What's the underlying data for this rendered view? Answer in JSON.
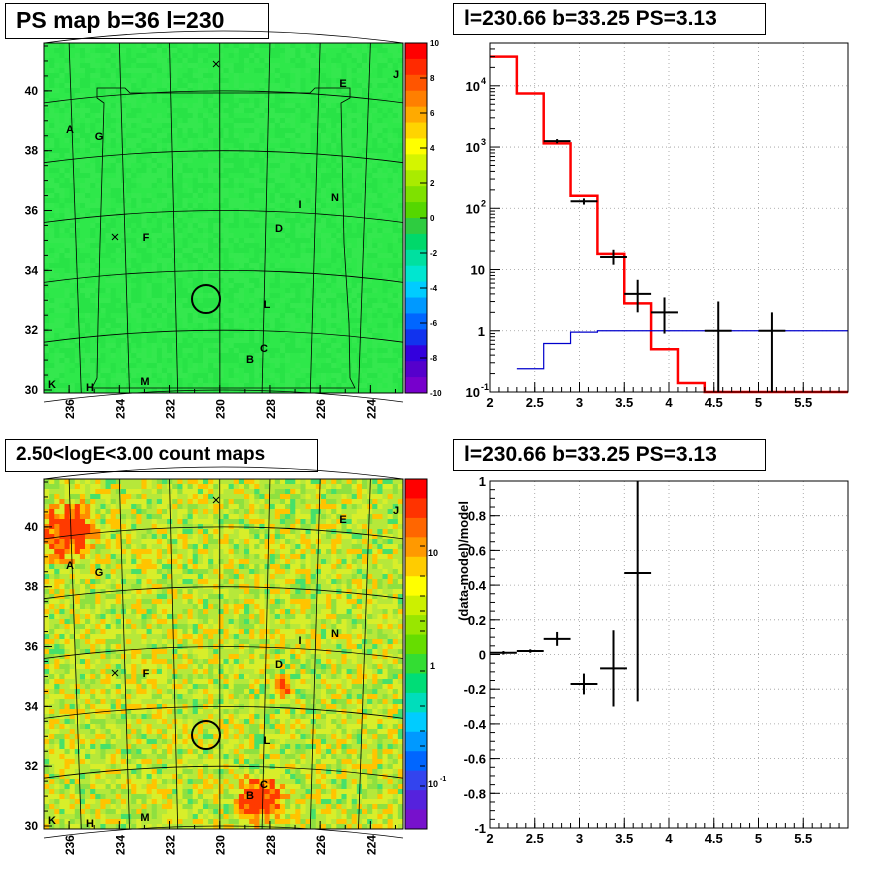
{
  "panels": {
    "map_top": {
      "title": "PS map b=36 l=230",
      "colorbar_ticks": [
        10,
        8,
        6,
        4,
        2,
        0,
        -2,
        -4,
        -6,
        -8,
        -10
      ],
      "colorscale": "linear",
      "base_color": "#2ee84a"
    },
    "spectrum": {
      "title": "l=230.66 b=33.25 PS=3.13"
    },
    "map_bottom": {
      "title": "2.50<logE<3.00 count maps",
      "colorbar_labels": [
        "10",
        "1",
        "10"
      ],
      "colorbar_exponent": "-1",
      "colorscale": "log",
      "base_color": "#b6e83a"
    },
    "residual": {
      "title": "l=230.66 b=33.25 PS=3.13"
    }
  },
  "map_axes": {
    "x_ticks": [
      236,
      234,
      232,
      230,
      228,
      226,
      224
    ],
    "y_ticks": [
      30,
      32,
      34,
      36,
      38,
      40
    ],
    "xlim": [
      237,
      222.7
    ],
    "ylim": [
      29.9,
      41.6
    ]
  },
  "map_labels": {
    "letters": [
      "A",
      "G",
      "E",
      "J",
      "I",
      "N",
      "D",
      "F",
      "L",
      "C",
      "B",
      "K",
      "H",
      "M"
    ]
  },
  "chart_data": [
    {
      "type": "heatmap",
      "title": "PS map b=36 l=230",
      "xlabel": "",
      "ylabel": "",
      "x_ticks": [
        236,
        234,
        232,
        230,
        228,
        226,
        224
      ],
      "y_ticks": [
        30,
        32,
        34,
        36,
        38,
        40
      ],
      "z_range": [
        -10,
        10
      ],
      "circle_marker": {
        "l": 230.66,
        "b": 33.25
      }
    },
    {
      "type": "step",
      "title": "l=230.66 b=33.25 PS=3.13",
      "xlabel": "",
      "ylabel": "",
      "xlim": [
        2,
        6
      ],
      "ylim": [
        0.1,
        50000
      ],
      "yscale": "log",
      "x_ticks": [
        "2",
        "2.5",
        "3",
        "3.5",
        "4",
        "4.5",
        "5",
        "5.5"
      ],
      "series": [
        {
          "color": "#ff0000",
          "bins": [
            [
              2.0,
              2.3,
              30000
            ],
            [
              2.3,
              2.6,
              7500
            ],
            [
              2.6,
              2.9,
              1150
            ],
            [
              2.9,
              3.2,
              160
            ],
            [
              3.2,
              3.5,
              18
            ],
            [
              3.5,
              3.8,
              2.8
            ],
            [
              3.8,
              4.1,
              0.5
            ],
            [
              4.1,
              4.4,
              0.14
            ],
            [
              4.4,
              6.0,
              0.1
            ]
          ]
        },
        {
          "color": "#0000cc",
          "bins": [
            [
              2.3,
              2.6,
              0.24
            ],
            [
              2.6,
              2.9,
              0.62
            ],
            [
              2.9,
              3.2,
              0.95
            ],
            [
              3.2,
              6.0,
              1.0
            ]
          ]
        },
        {
          "color": "#000000",
          "points": [
            {
              "x": 2.75,
              "y": 1250,
              "xerr": 0.15,
              "ylo": 1150,
              "yhi": 1350
            },
            {
              "x": 3.05,
              "y": 130,
              "xerr": 0.15,
              "ylo": 115,
              "yhi": 145
            },
            {
              "x": 3.38,
              "y": 16,
              "xerr": 0.15,
              "ylo": 12,
              "yhi": 21
            },
            {
              "x": 3.65,
              "y": 4,
              "xerr": 0.15,
              "ylo": 2,
              "yhi": 6.8
            },
            {
              "x": 3.95,
              "y": 2,
              "xerr": 0.15,
              "ylo": 0.9,
              "yhi": 3.5
            },
            {
              "x": 4.55,
              "y": 1,
              "xerr": 0.15,
              "ylo": 0.1,
              "yhi": 3
            },
            {
              "x": 5.15,
              "y": 1,
              "xerr": 0.15,
              "ylo": 0.1,
              "yhi": 2
            }
          ]
        }
      ]
    },
    {
      "type": "heatmap",
      "title": "2.50<logE<3.00 count maps",
      "xlabel": "",
      "ylabel": "",
      "x_ticks": [
        236,
        234,
        232,
        230,
        228,
        226,
        224
      ],
      "y_ticks": [
        30,
        32,
        34,
        36,
        38,
        40
      ],
      "zscale": "log",
      "circle_marker": {
        "l": 230.66,
        "b": 33.25
      }
    },
    {
      "type": "scatter",
      "title": "l=230.66 b=33.25 PS=3.13",
      "xlabel": "",
      "ylabel": "(data-model)/model",
      "xlim": [
        2,
        6
      ],
      "ylim": [
        -1,
        1
      ],
      "x_ticks": [
        "2",
        "2.5",
        "3",
        "3.5",
        "4",
        "4.5",
        "5",
        "5.5"
      ],
      "y_ticks": [
        "1",
        "0.8",
        "0.6",
        "0.4",
        "0.2",
        "0",
        "-0.2",
        "-0.4",
        "-0.6",
        "-0.8",
        "-1"
      ],
      "points": [
        {
          "x": 2.15,
          "y": 0.01,
          "xerr": 0.15,
          "yerr": 0.01
        },
        {
          "x": 2.45,
          "y": 0.02,
          "xerr": 0.15,
          "yerr": 0.01
        },
        {
          "x": 2.75,
          "y": 0.09,
          "xerr": 0.15,
          "yerr": 0.04
        },
        {
          "x": 3.05,
          "y": -0.17,
          "xerr": 0.15,
          "yerr": 0.06
        },
        {
          "x": 3.38,
          "y": -0.08,
          "xerr": 0.15,
          "yerr": 0.22
        },
        {
          "x": 3.65,
          "y": 0.47,
          "xerr": 0.15,
          "ylo": -0.27,
          "yhi": 1.0
        }
      ]
    }
  ]
}
